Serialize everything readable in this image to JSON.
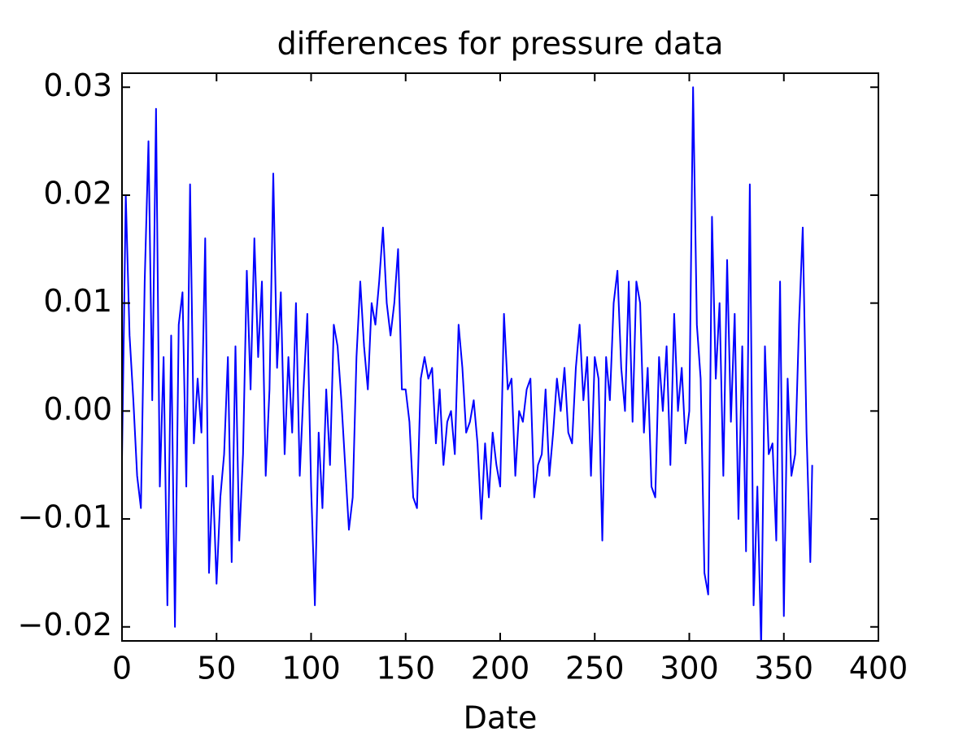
{
  "chart_data": {
    "type": "line",
    "title": "differences for pressure data",
    "xlabel": "Date",
    "x": [
      0,
      2,
      4,
      6,
      8,
      10,
      12,
      14,
      16,
      18,
      20,
      22,
      24,
      26,
      28,
      30,
      32,
      34,
      36,
      38,
      40,
      42,
      44,
      46,
      48,
      50,
      52,
      54,
      56,
      58,
      60,
      62,
      64,
      66,
      68,
      70,
      72,
      74,
      76,
      78,
      80,
      82,
      84,
      86,
      88,
      90,
      92,
      94,
      96,
      98,
      100,
      102,
      104,
      106,
      108,
      110,
      112,
      114,
      116,
      118,
      120,
      122,
      124,
      126,
      128,
      130,
      132,
      134,
      136,
      138,
      140,
      142,
      144,
      146,
      148,
      150,
      152,
      154,
      156,
      158,
      160,
      162,
      164,
      166,
      168,
      170,
      172,
      174,
      176,
      178,
      180,
      182,
      184,
      186,
      188,
      190,
      192,
      194,
      196,
      198,
      200,
      202,
      204,
      206,
      208,
      210,
      212,
      214,
      216,
      218,
      220,
      222,
      224,
      226,
      228,
      230,
      232,
      234,
      236,
      238,
      240,
      242,
      244,
      246,
      248,
      250,
      252,
      254,
      256,
      258,
      260,
      262,
      264,
      266,
      268,
      270,
      272,
      274,
      276,
      278,
      280,
      282,
      284,
      286,
      288,
      290,
      292,
      294,
      296,
      298,
      300,
      302,
      304,
      306,
      308,
      310,
      312,
      314,
      316,
      318,
      320,
      322,
      324,
      326,
      328,
      330,
      332,
      334,
      336,
      338,
      340,
      342,
      344,
      346,
      348,
      350,
      352,
      354,
      356,
      358,
      360,
      362,
      364,
      365
    ],
    "series": [
      {
        "color": "#0000ff",
        "values": [
          -0.0045,
          0.02,
          0.007,
          0.001,
          -0.006,
          -0.009,
          0.012,
          0.025,
          0.001,
          0.028,
          -0.007,
          0.005,
          -0.018,
          0.007,
          -0.02,
          0.008,
          0.011,
          -0.007,
          0.021,
          -0.003,
          0.003,
          -0.002,
          0.016,
          -0.015,
          -0.006,
          -0.016,
          -0.008,
          -0.004,
          0.005,
          -0.014,
          0.006,
          -0.012,
          -0.004,
          0.013,
          0.002,
          0.016,
          0.005,
          0.012,
          -0.006,
          0.002,
          0.022,
          0.004,
          0.011,
          -0.004,
          0.005,
          -0.002,
          0.01,
          -0.006,
          0.002,
          0.009,
          -0.007,
          -0.018,
          -0.002,
          -0.009,
          0.002,
          -0.005,
          0.008,
          0.006,
          0.001,
          -0.005,
          -0.011,
          -0.008,
          0.005,
          0.012,
          0.006,
          0.002,
          0.01,
          0.008,
          0.012,
          0.017,
          0.01,
          0.007,
          0.01,
          0.015,
          0.002,
          0.002,
          -0.001,
          -0.008,
          -0.009,
          0.003,
          0.005,
          0.003,
          0.004,
          -0.003,
          0.002,
          -0.005,
          -0.001,
          0.0,
          -0.004,
          0.008,
          0.004,
          -0.002,
          -0.001,
          0.001,
          -0.003,
          -0.01,
          -0.003,
          -0.008,
          -0.002,
          -0.005,
          -0.007,
          0.009,
          0.002,
          0.003,
          -0.006,
          0.0,
          -0.001,
          0.002,
          0.003,
          -0.008,
          -0.005,
          -0.004,
          0.002,
          -0.006,
          -0.002,
          0.003,
          0.0,
          0.004,
          -0.002,
          -0.003,
          0.004,
          0.008,
          0.001,
          0.005,
          -0.006,
          0.005,
          0.003,
          -0.012,
          0.005,
          0.001,
          0.01,
          0.013,
          0.004,
          0.0,
          0.012,
          -0.001,
          0.012,
          0.01,
          -0.002,
          0.004,
          -0.007,
          -0.008,
          0.005,
          0.0,
          0.006,
          -0.005,
          0.009,
          0.0,
          0.004,
          -0.003,
          0.0,
          0.03,
          0.008,
          0.003,
          -0.015,
          -0.017,
          0.018,
          0.003,
          0.01,
          -0.006,
          0.014,
          -0.001,
          0.009,
          -0.01,
          0.006,
          -0.013,
          0.021,
          -0.018,
          -0.007,
          -0.022,
          0.006,
          -0.004,
          -0.003,
          -0.012,
          0.012,
          -0.019,
          0.003,
          -0.006,
          -0.004,
          0.008,
          0.017,
          -0.002,
          -0.014,
          -0.005
        ]
      }
    ],
    "xlim": [
      0,
      400
    ],
    "xticks": [
      0,
      50,
      100,
      150,
      200,
      250,
      300,
      350,
      400
    ],
    "ylim": [
      -0.0213,
      0.0313
    ],
    "yticks": [
      {
        "value": -0.02,
        "label": "−0.02"
      },
      {
        "value": -0.01,
        "label": "−0.01"
      },
      {
        "value": 0,
        "label": "0.00"
      },
      0.01,
      0.02,
      0.03
    ],
    "grid": false
  }
}
